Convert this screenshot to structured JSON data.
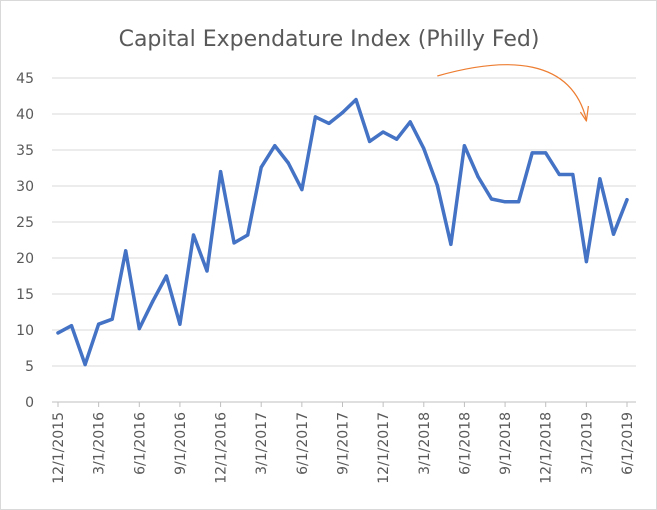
{
  "chart_data": {
    "type": "line",
    "title": "Capital Expendature Index (Philly Fed)",
    "xlabel": "",
    "ylabel": "",
    "ylim": [
      0,
      45
    ],
    "yticks": [
      0,
      5,
      10,
      15,
      20,
      25,
      30,
      35,
      40,
      45
    ],
    "grid": true,
    "legend": "none",
    "x_tick_labels": [
      "12/1/2015",
      "3/1/2016",
      "6/1/2016",
      "9/1/2016",
      "12/1/2016",
      "3/1/2017",
      "6/1/2017",
      "9/1/2017",
      "12/1/2017",
      "3/1/2018",
      "6/1/2018",
      "9/1/2018",
      "12/1/2018",
      "3/1/2019",
      "6/1/2019"
    ],
    "series": [
      {
        "color": "#4472c4",
        "x": [
          "12/1/2015",
          "1/1/2016",
          "2/1/2016",
          "3/1/2016",
          "4/1/2016",
          "5/1/2016",
          "6/1/2016",
          "7/1/2016",
          "8/1/2016",
          "9/1/2016",
          "10/1/2016",
          "11/1/2016",
          "12/1/2016",
          "1/1/2017",
          "2/1/2017",
          "3/1/2017",
          "4/1/2017",
          "5/1/2017",
          "6/1/2017",
          "7/1/2017",
          "8/1/2017",
          "9/1/2017",
          "10/1/2017",
          "11/1/2017",
          "12/1/2017",
          "1/1/2018",
          "2/1/2018",
          "3/1/2018",
          "4/1/2018",
          "5/1/2018",
          "6/1/2018",
          "7/1/2018",
          "8/1/2018",
          "9/1/2018",
          "10/1/2018",
          "11/1/2018",
          "12/1/2018",
          "1/1/2019",
          "2/1/2019",
          "3/1/2019",
          "4/1/2019",
          "5/1/2019",
          "6/1/2019"
        ],
        "values": [
          9.6,
          10.6,
          5.2,
          10.8,
          11.5,
          21.0,
          10.2,
          14.0,
          17.5,
          10.8,
          23.2,
          18.2,
          32.0,
          22.1,
          23.2,
          32.6,
          35.6,
          33.2,
          29.5,
          39.6,
          38.7,
          40.2,
          42.0,
          36.2,
          37.5,
          36.5,
          38.9,
          35.2,
          30.1,
          21.9,
          35.6,
          31.3,
          28.2,
          27.8,
          27.8,
          34.6,
          34.6,
          31.6,
          31.6,
          19.5,
          31.0,
          23.3,
          28.1
        ]
      }
    ],
    "annotations": [
      {
        "type": "curved-arrow",
        "color": "#ed7d31",
        "from": "4/1/2018",
        "to": "3/1/2019"
      }
    ]
  }
}
